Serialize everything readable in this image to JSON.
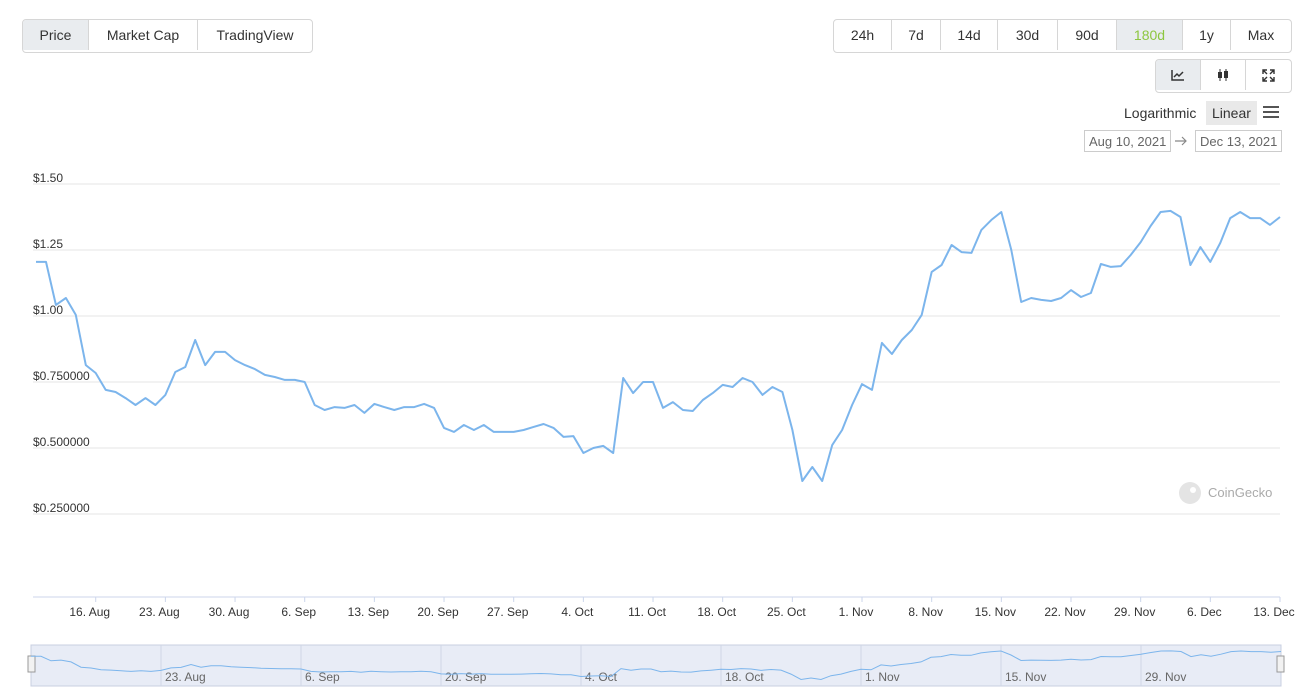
{
  "tabs": [
    "Price",
    "Market Cap",
    "TradingView"
  ],
  "ranges": [
    "24h",
    "7d",
    "14d",
    "30d",
    "90d",
    "180d",
    "1y",
    "Max"
  ],
  "scale_options": [
    "Logarithmic",
    "Linear"
  ],
  "date_range": {
    "from": "Aug 10, 2021",
    "to": "Dec 13, 2021"
  },
  "watermark": "CoinGecko",
  "chart_data": {
    "type": "line",
    "color": "#7cb5ec",
    "grid": true,
    "xlim": [
      "2021-08-10",
      "2021-12-13"
    ],
    "x": [
      "2021-08-10",
      "2021-08-11",
      "2021-08-12",
      "2021-08-13",
      "2021-08-14",
      "2021-08-15",
      "2021-08-16",
      "2021-08-17",
      "2021-08-18",
      "2021-08-19",
      "2021-08-20",
      "2021-08-21",
      "2021-08-22",
      "2021-08-23",
      "2021-08-24",
      "2021-08-25",
      "2021-08-26",
      "2021-08-27",
      "2021-08-28",
      "2021-08-29",
      "2021-08-30",
      "2021-08-31",
      "2021-09-01",
      "2021-09-02",
      "2021-09-03",
      "2021-09-04",
      "2021-09-05",
      "2021-09-06",
      "2021-09-07",
      "2021-09-08",
      "2021-09-09",
      "2021-09-10",
      "2021-09-11",
      "2021-09-12",
      "2021-09-13",
      "2021-09-14",
      "2021-09-15",
      "2021-09-16",
      "2021-09-17",
      "2021-09-18",
      "2021-09-19",
      "2021-09-20",
      "2021-09-21",
      "2021-09-22",
      "2021-09-23",
      "2021-09-24",
      "2021-09-25",
      "2021-09-26",
      "2021-09-27",
      "2021-09-28",
      "2021-09-29",
      "2021-09-30",
      "2021-10-01",
      "2021-10-02",
      "2021-10-03",
      "2021-10-04",
      "2021-10-05",
      "2021-10-06",
      "2021-10-07",
      "2021-10-08",
      "2021-10-09",
      "2021-10-10",
      "2021-10-11",
      "2021-10-12",
      "2021-10-13",
      "2021-10-14",
      "2021-10-15",
      "2021-10-16",
      "2021-10-17",
      "2021-10-18",
      "2021-10-19",
      "2021-10-20",
      "2021-10-21",
      "2021-10-22",
      "2021-10-23",
      "2021-10-24",
      "2021-10-25",
      "2021-10-26",
      "2021-10-27",
      "2021-10-28",
      "2021-10-29",
      "2021-10-30",
      "2021-10-31",
      "2021-11-01",
      "2021-11-02",
      "2021-11-03",
      "2021-11-04",
      "2021-11-05",
      "2021-11-06",
      "2021-11-07",
      "2021-11-08",
      "2021-11-09",
      "2021-11-10",
      "2021-11-11",
      "2021-11-12",
      "2021-11-13",
      "2021-11-14",
      "2021-11-15",
      "2021-11-16",
      "2021-11-17",
      "2021-11-18",
      "2021-11-19",
      "2021-11-20",
      "2021-11-21",
      "2021-11-22",
      "2021-11-23",
      "2021-11-24",
      "2021-11-25",
      "2021-11-26",
      "2021-11-27",
      "2021-11-28",
      "2021-11-29",
      "2021-11-30",
      "2021-12-01",
      "2021-12-02",
      "2021-12-03",
      "2021-12-04",
      "2021-12-05",
      "2021-12-06",
      "2021-12-07",
      "2021-12-08",
      "2021-12-09",
      "2021-12-10",
      "2021-12-11",
      "2021-12-12",
      "2021-12-13"
    ],
    "values": [
      1.205,
      1.205,
      1.042,
      1.068,
      1.004,
      0.814,
      0.784,
      0.72,
      0.712,
      0.689,
      0.663,
      0.689,
      0.663,
      0.701,
      0.788,
      0.807,
      0.909,
      0.814,
      0.864,
      0.864,
      0.833,
      0.814,
      0.799,
      0.777,
      0.769,
      0.758,
      0.758,
      0.75,
      0.663,
      0.644,
      0.655,
      0.652,
      0.663,
      0.633,
      0.667,
      0.655,
      0.644,
      0.655,
      0.655,
      0.667,
      0.652,
      0.576,
      0.561,
      0.587,
      0.568,
      0.587,
      0.561,
      0.561,
      0.561,
      0.568,
      0.58,
      0.591,
      0.576,
      0.542,
      0.545,
      0.481,
      0.5,
      0.508,
      0.481,
      0.765,
      0.708,
      0.75,
      0.75,
      0.652,
      0.674,
      0.644,
      0.64,
      0.682,
      0.708,
      0.739,
      0.731,
      0.765,
      0.75,
      0.701,
      0.731,
      0.712,
      0.568,
      0.375,
      0.428,
      0.375,
      0.511,
      0.568,
      0.663,
      0.742,
      0.72,
      0.898,
      0.856,
      0.909,
      0.947,
      1.004,
      1.167,
      1.193,
      1.269,
      1.242,
      1.239,
      1.326,
      1.364,
      1.394,
      1.25,
      1.053,
      1.068,
      1.061,
      1.057,
      1.068,
      1.098,
      1.072,
      1.087,
      1.197,
      1.186,
      1.189,
      1.231,
      1.28,
      1.341,
      1.394,
      1.398,
      1.375,
      1.193,
      1.261,
      1.205,
      1.277,
      1.371,
      1.394,
      1.371,
      1.371,
      1.345,
      1.375
    ],
    "ylim": [
      0,
      1.5
    ],
    "yticks": [
      {
        "value": 1.5,
        "label": "$1.50"
      },
      {
        "value": 1.25,
        "label": "$1.25"
      },
      {
        "value": 1,
        "label": "$1.00"
      },
      {
        "value": 0.75,
        "label": "$0.750000"
      },
      {
        "value": 0.5,
        "label": "$0.500000"
      },
      {
        "value": 0.25,
        "label": "$0.250000"
      }
    ],
    "xticks": [
      {
        "value": "2021-08-16",
        "label": "16. Aug"
      },
      {
        "value": "2021-08-23",
        "label": "23. Aug"
      },
      {
        "value": "2021-08-30",
        "label": "30. Aug"
      },
      {
        "value": "2021-09-06",
        "label": "6. Sep"
      },
      {
        "value": "2021-09-13",
        "label": "13. Sep"
      },
      {
        "value": "2021-09-20",
        "label": "20. Sep"
      },
      {
        "value": "2021-09-27",
        "label": "27. Sep"
      },
      {
        "value": "2021-10-04",
        "label": "4. Oct"
      },
      {
        "value": "2021-10-11",
        "label": "11. Oct"
      },
      {
        "value": "2021-10-18",
        "label": "18. Oct"
      },
      {
        "value": "2021-10-25",
        "label": "25. Oct"
      },
      {
        "value": "2021-11-01",
        "label": "1. Nov"
      },
      {
        "value": "2021-11-08",
        "label": "8. Nov"
      },
      {
        "value": "2021-11-15",
        "label": "15. Nov"
      },
      {
        "value": "2021-11-22",
        "label": "22. Nov"
      },
      {
        "value": "2021-11-29",
        "label": "29. Nov"
      },
      {
        "value": "2021-12-06",
        "label": "6. Dec"
      },
      {
        "value": "2021-12-13",
        "label": "13. Dec"
      }
    ]
  },
  "navigator": {
    "xticks": [
      {
        "value": "2021-08-23",
        "label": "23. Aug"
      },
      {
        "value": "2021-09-06",
        "label": "6. Sep"
      },
      {
        "value": "2021-09-20",
        "label": "20. Sep"
      },
      {
        "value": "2021-10-04",
        "label": "4. Oct"
      },
      {
        "value": "2021-10-18",
        "label": "18. Oct"
      },
      {
        "value": "2021-11-01",
        "label": "1. Nov"
      },
      {
        "value": "2021-11-15",
        "label": "15. Nov"
      },
      {
        "value": "2021-11-29",
        "label": "29. Nov"
      }
    ]
  }
}
